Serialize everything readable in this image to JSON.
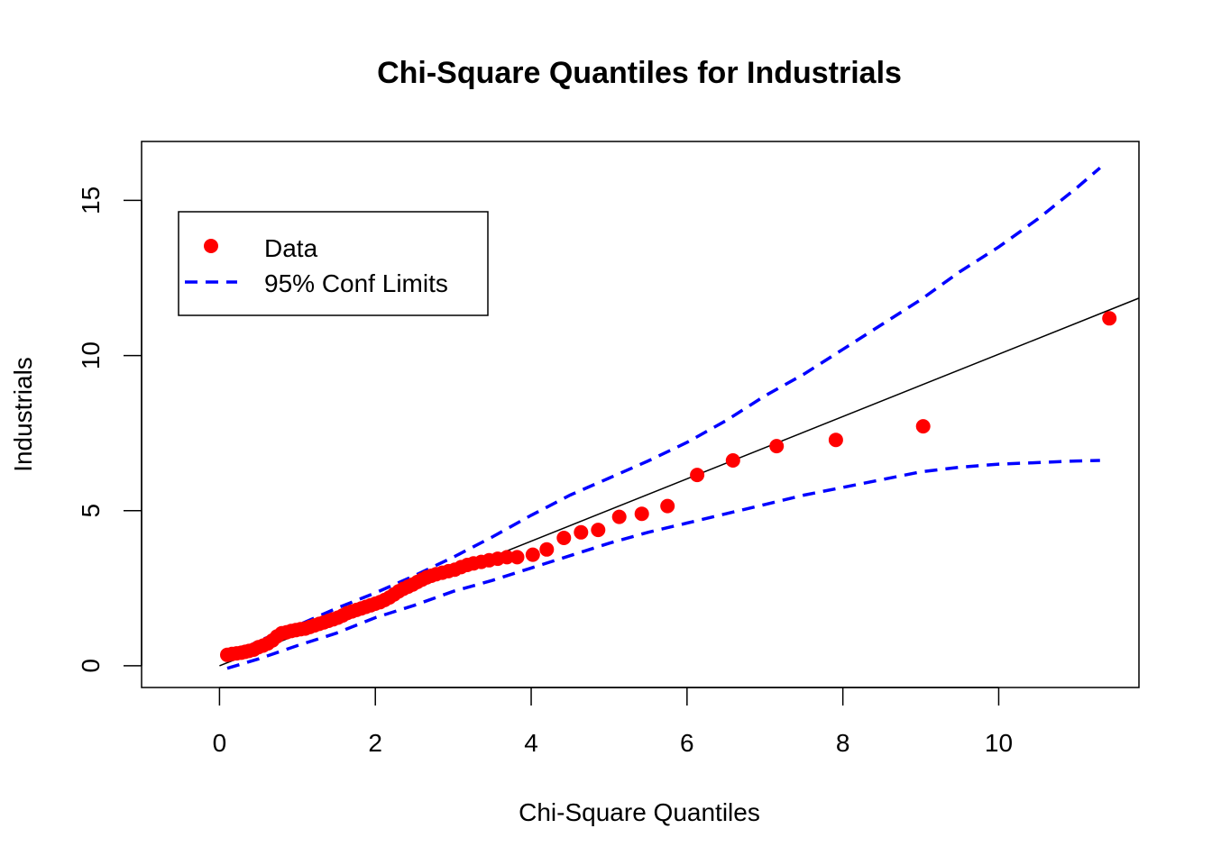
{
  "chart_data": {
    "type": "scatter",
    "title": "Chi-Square Quantiles for Industrials",
    "xlabel": "Chi-Square Quantiles",
    "ylabel": "Industrials",
    "xlim": [
      -1.0,
      11.8
    ],
    "ylim": [
      -0.7,
      16.9
    ],
    "x_ticks": [
      0,
      2,
      4,
      6,
      8,
      10
    ],
    "y_ticks": [
      0,
      5,
      10,
      15
    ],
    "grid": false,
    "legend": {
      "placement": "top-left",
      "entries": [
        "Data",
        "95% Conf Limits"
      ]
    },
    "colors": {
      "data": "#ff0000",
      "conf_limits": "#0000ff",
      "reference_line": "#000000"
    },
    "series": [
      {
        "name": "Data",
        "kind": "points",
        "x": [
          0.1,
          0.16,
          0.22,
          0.28,
          0.33,
          0.38,
          0.44,
          0.5,
          0.56,
          0.62,
          0.68,
          0.74,
          0.8,
          0.86,
          0.92,
          0.98,
          1.04,
          1.1,
          1.16,
          1.22,
          1.28,
          1.34,
          1.4,
          1.46,
          1.52,
          1.58,
          1.64,
          1.7,
          1.76,
          1.82,
          1.88,
          1.94,
          2.0,
          2.06,
          2.12,
          2.18,
          2.24,
          2.3,
          2.36,
          2.42,
          2.48,
          2.54,
          2.6,
          2.66,
          2.72,
          2.78,
          2.86,
          2.94,
          3.02,
          3.1,
          3.18,
          3.26,
          3.36,
          3.46,
          3.57,
          3.69,
          3.82,
          4.02,
          4.2,
          4.42,
          4.64,
          4.86,
          5.13,
          5.42,
          5.75,
          6.13,
          6.59,
          7.15,
          7.91,
          9.03,
          11.42
        ],
        "y": [
          0.35,
          0.38,
          0.4,
          0.42,
          0.45,
          0.48,
          0.52,
          0.6,
          0.65,
          0.72,
          0.82,
          0.95,
          1.05,
          1.08,
          1.12,
          1.15,
          1.18,
          1.2,
          1.25,
          1.3,
          1.35,
          1.4,
          1.45,
          1.5,
          1.55,
          1.62,
          1.7,
          1.75,
          1.8,
          1.85,
          1.9,
          1.95,
          2.0,
          2.05,
          2.12,
          2.2,
          2.3,
          2.4,
          2.48,
          2.55,
          2.62,
          2.7,
          2.78,
          2.85,
          2.9,
          2.95,
          3.0,
          3.05,
          3.1,
          3.18,
          3.25,
          3.3,
          3.35,
          3.4,
          3.45,
          3.5,
          3.5,
          3.58,
          3.75,
          4.12,
          4.3,
          4.38,
          4.8,
          4.9,
          5.15,
          6.15,
          6.62,
          7.08,
          7.28,
          7.72,
          11.2
        ]
      },
      {
        "name": "95% Conf Limits",
        "kind": "upper",
        "x": [
          0.1,
          0.5,
          1.0,
          1.5,
          2.0,
          2.5,
          3.0,
          3.5,
          4.0,
          4.5,
          5.0,
          5.5,
          6.0,
          6.5,
          7.0,
          7.5,
          8.0,
          8.5,
          9.0,
          9.5,
          10.0,
          10.5,
          11.0,
          11.3
        ],
        "y": [
          0.25,
          0.8,
          1.3,
          1.85,
          2.35,
          2.9,
          3.5,
          4.15,
          4.85,
          5.5,
          6.05,
          6.6,
          7.2,
          7.9,
          8.7,
          9.4,
          10.2,
          11.0,
          11.8,
          12.7,
          13.5,
          14.4,
          15.4,
          16.05
        ]
      },
      {
        "name": "",
        "kind": "lower",
        "x": [
          0.1,
          0.5,
          1.0,
          1.5,
          2.0,
          2.5,
          3.0,
          3.5,
          4.0,
          4.5,
          5.0,
          5.5,
          6.0,
          6.5,
          7.0,
          7.5,
          8.0,
          8.5,
          9.0,
          9.5,
          10.0,
          10.5,
          11.0,
          11.3
        ],
        "y": [
          -0.08,
          0.22,
          0.65,
          1.05,
          1.55,
          1.95,
          2.4,
          2.75,
          3.15,
          3.55,
          3.95,
          4.3,
          4.6,
          4.9,
          5.2,
          5.5,
          5.75,
          6.0,
          6.25,
          6.4,
          6.5,
          6.55,
          6.6,
          6.62
        ]
      },
      {
        "name": "",
        "kind": "line",
        "x": [
          0.0,
          11.8
        ],
        "y": [
          0.0,
          11.85
        ]
      }
    ]
  }
}
